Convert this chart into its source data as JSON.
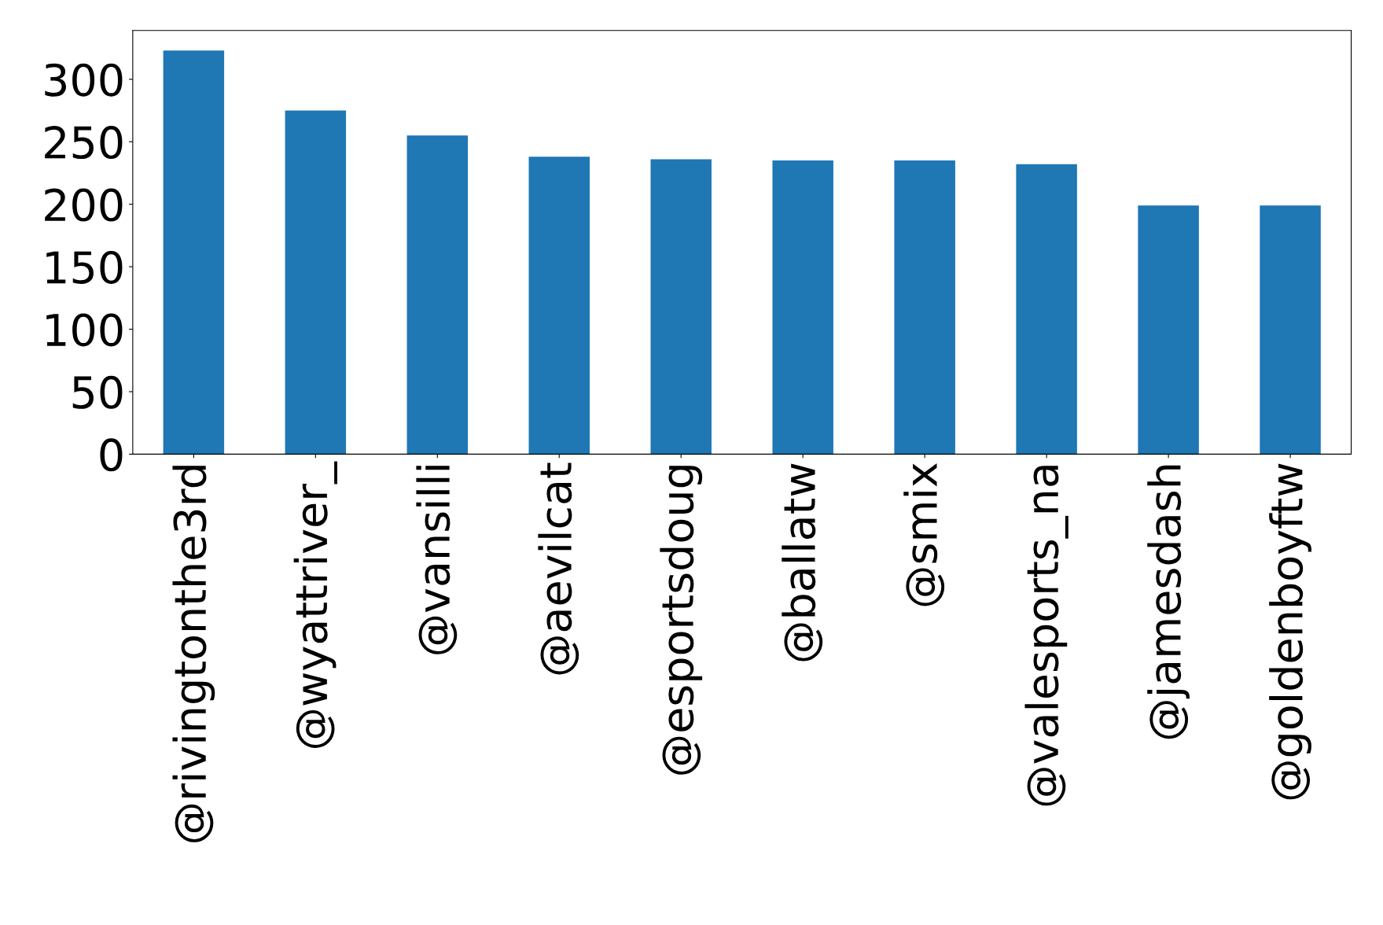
{
  "chart_data": {
    "type": "bar",
    "categories": [
      "@rivingtonthe3rd",
      "@wyattriver_",
      "@vansilli",
      "@aevilcat",
      "@esportsdoug",
      "@ballatw",
      "@smix",
      "@valesports_na",
      "@jamesdash",
      "@goldenboyftw"
    ],
    "values": [
      323,
      275,
      255,
      238,
      236,
      235,
      235,
      232,
      199,
      199
    ],
    "color": "#1f77b4",
    "ylim": [
      0,
      339
    ],
    "yticks": [
      0,
      50,
      100,
      150,
      200,
      250,
      300
    ],
    "grid": false,
    "legend": false
  }
}
